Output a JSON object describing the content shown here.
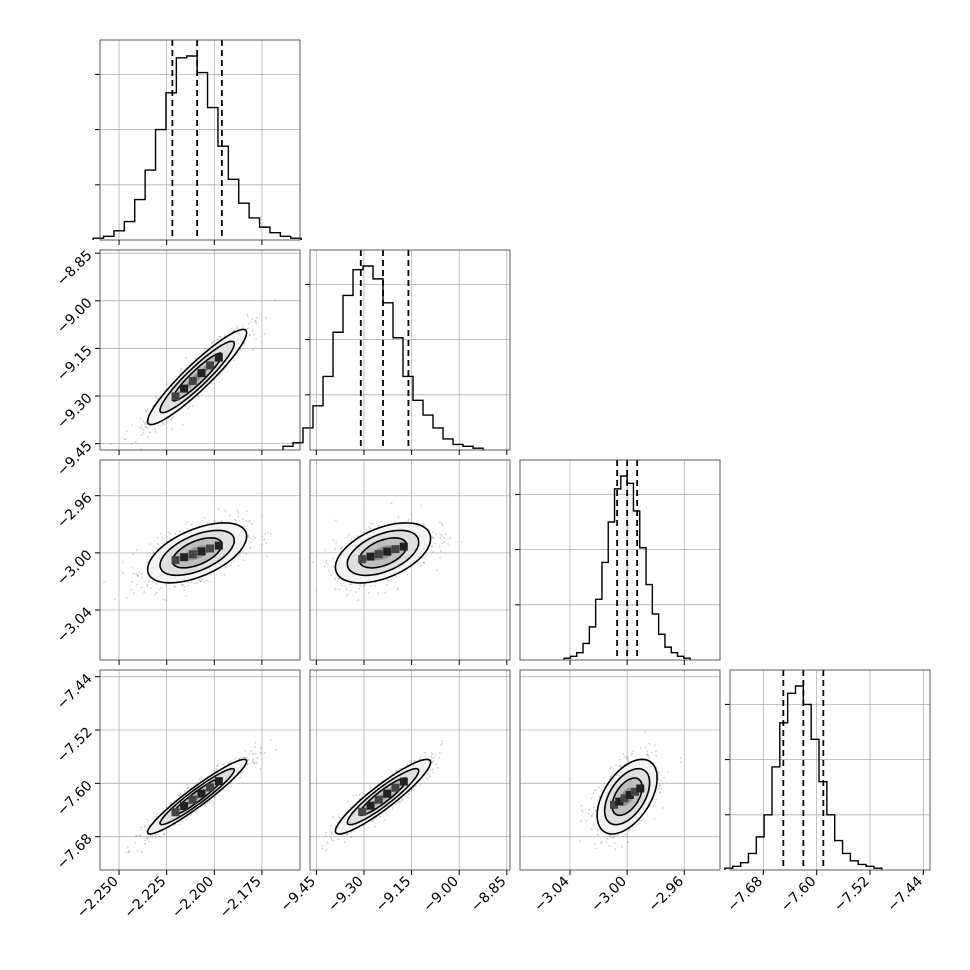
{
  "chart_data": {
    "type": "corner",
    "title": "",
    "parameters": [
      {
        "range": [
          -2.26,
          -2.155
        ],
        "ticks": [
          -2.25,
          -2.225,
          -2.2,
          -2.175
        ],
        "tick_labels": [
          "−2.250",
          "−2.225",
          "−2.200",
          "−2.175"
        ],
        "quantiles": [
          -2.222,
          -2.209,
          -2.196
        ],
        "mean": -2.209,
        "sd": 0.013,
        "hist_heights": [
          1,
          2,
          5,
          10,
          22,
          38,
          60,
          80,
          99,
          100,
          91,
          72,
          51,
          33,
          20,
          12,
          7,
          4,
          2,
          1
        ]
      },
      {
        "range": [
          -9.47,
          -8.84
        ],
        "ticks": [
          -9.45,
          -9.3,
          -9.15,
          -9.0,
          -8.85
        ],
        "tick_labels": [
          "−9.45",
          "−9.30",
          "−9.15",
          "−9.00",
          "−8.85"
        ],
        "quantiles": [
          -9.31,
          -9.24,
          -9.16
        ],
        "mean": -9.24,
        "sd": 0.075,
        "hist_heights": [
          2,
          4,
          12,
          24,
          40,
          64,
          84,
          98,
          100,
          93,
          80,
          61,
          40,
          27,
          19,
          12,
          6,
          3,
          2,
          1
        ]
      },
      {
        "range": [
          -3.075,
          -2.935
        ],
        "ticks": [
          -3.04,
          -3.0,
          -2.96
        ],
        "tick_labels": [
          "−3.04",
          "−3.00",
          "−2.96"
        ],
        "quantiles": [
          -3.007,
          -3.0,
          -2.993
        ],
        "mean": -3.0,
        "sd": 0.0105,
        "hist_heights": [
          1,
          2,
          4,
          9,
          18,
          33,
          53,
          75,
          93,
          100,
          96,
          81,
          61,
          41,
          25,
          14,
          7,
          4,
          2,
          1
        ]
      },
      {
        "range": [
          -7.73,
          -7.43
        ],
        "ticks": [
          -7.68,
          -7.6,
          -7.52,
          -7.44
        ],
        "tick_labels": [
          "−7.68",
          "−7.60",
          "−7.52",
          "−7.44"
        ],
        "quantiles": [
          -7.65,
          -7.62,
          -7.59
        ],
        "mean": -7.62,
        "sd": 0.028,
        "hist_heights": [
          1,
          2,
          4,
          9,
          18,
          30,
          56,
          80,
          96,
          100,
          90,
          71,
          48,
          30,
          16,
          9,
          5,
          3,
          2,
          1
        ]
      }
    ],
    "correlations": [
      [
        1.0,
        0.93,
        0.55,
        0.95
      ],
      [
        0.93,
        1.0,
        0.48,
        0.92
      ],
      [
        0.55,
        0.48,
        1.0,
        0.5
      ],
      [
        0.95,
        0.92,
        0.5,
        1.0
      ]
    ],
    "contour_levels_sigma": [
      0.5,
      1.0,
      1.5,
      2.0
    ],
    "scatter_color": "#777777",
    "contour_color": "#000000",
    "grid": true
  }
}
